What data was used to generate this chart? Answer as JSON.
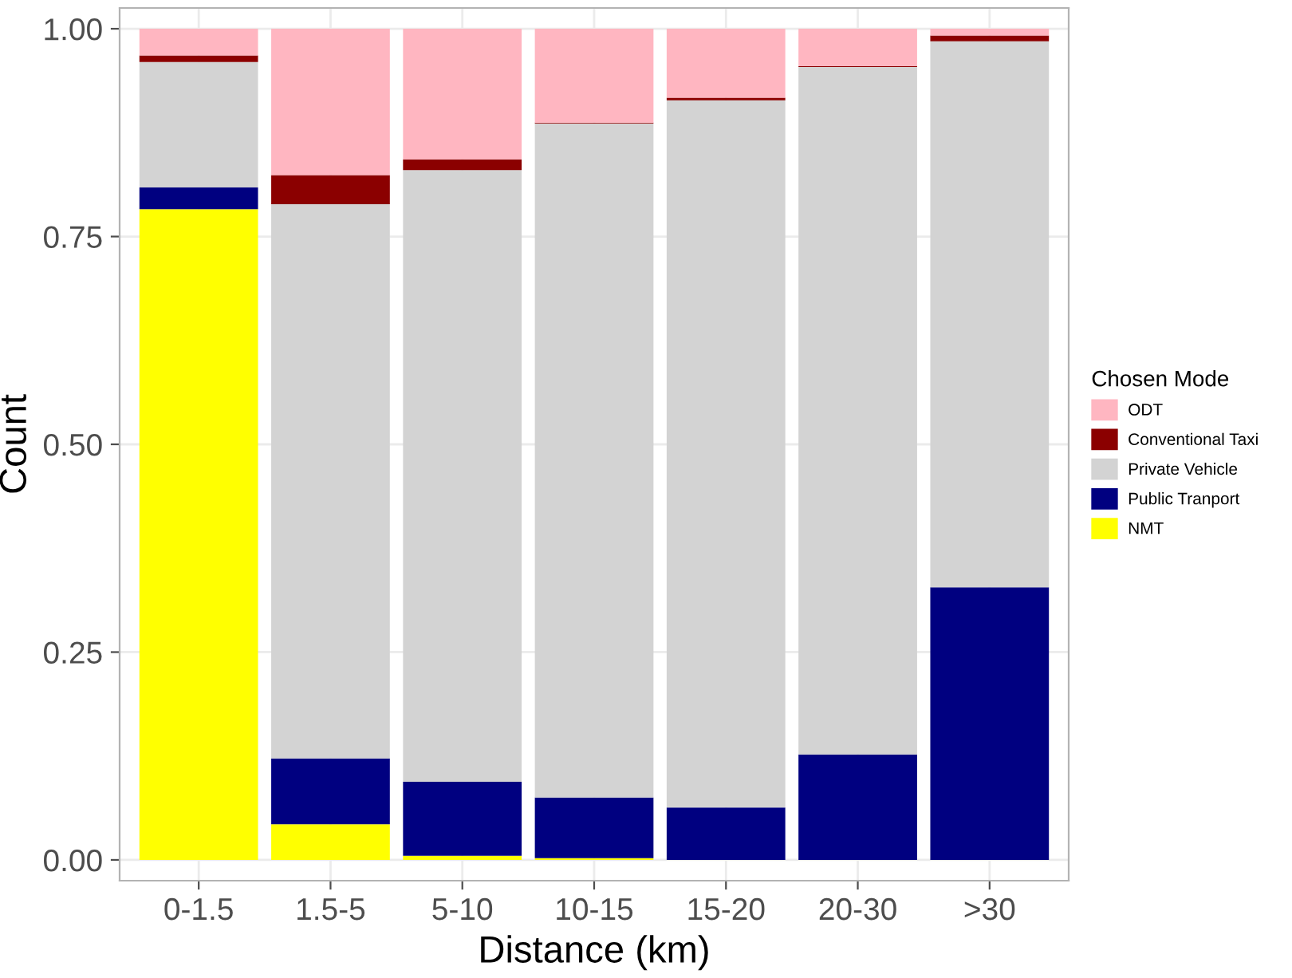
{
  "chart_data": {
    "type": "bar",
    "stacked": true,
    "xlabel": "Distance (km)",
    "ylabel": "Count",
    "legend_title": "Chosen Mode",
    "legend": "right",
    "categories": [
      "0-1.5",
      "1.5-5",
      "5-10",
      "10-15",
      "15-20",
      "20-30",
      ">30"
    ],
    "ylim": [
      -0.025,
      1.025
    ],
    "yticks": [
      {
        "value": 0,
        "label": "0.00"
      },
      {
        "value": 0.25,
        "label": "0.25"
      },
      {
        "value": 0.5,
        "label": "0.50"
      },
      {
        "value": 0.75,
        "label": "0.75"
      },
      {
        "value": 1,
        "label": "1.00"
      }
    ],
    "grid": true,
    "series": [
      {
        "name": "NMT",
        "color": "#ffff00",
        "values": [
          0.783,
          0.043,
          0.005,
          0.002,
          0,
          0,
          0
        ]
      },
      {
        "name": "Public Tranport",
        "color": "#000080",
        "values": [
          0.026,
          0.079,
          0.089,
          0.073,
          0.063,
          0.127,
          0.328
        ]
      },
      {
        "name": "Private Vehicle",
        "color": "#d3d3d3",
        "values": [
          0.151,
          0.667,
          0.736,
          0.811,
          0.851,
          0.827,
          0.657
        ]
      },
      {
        "name": "Conventional Taxi",
        "color": "#8b0000",
        "values": [
          0.008,
          0.035,
          0.013,
          0.001,
          0.003,
          0.001,
          0.007
        ]
      },
      {
        "name": "ODT",
        "color": "#ffb6c1",
        "values": [
          0.032,
          0.176,
          0.157,
          0.113,
          0.083,
          0.045,
          0.008
        ]
      }
    ]
  }
}
